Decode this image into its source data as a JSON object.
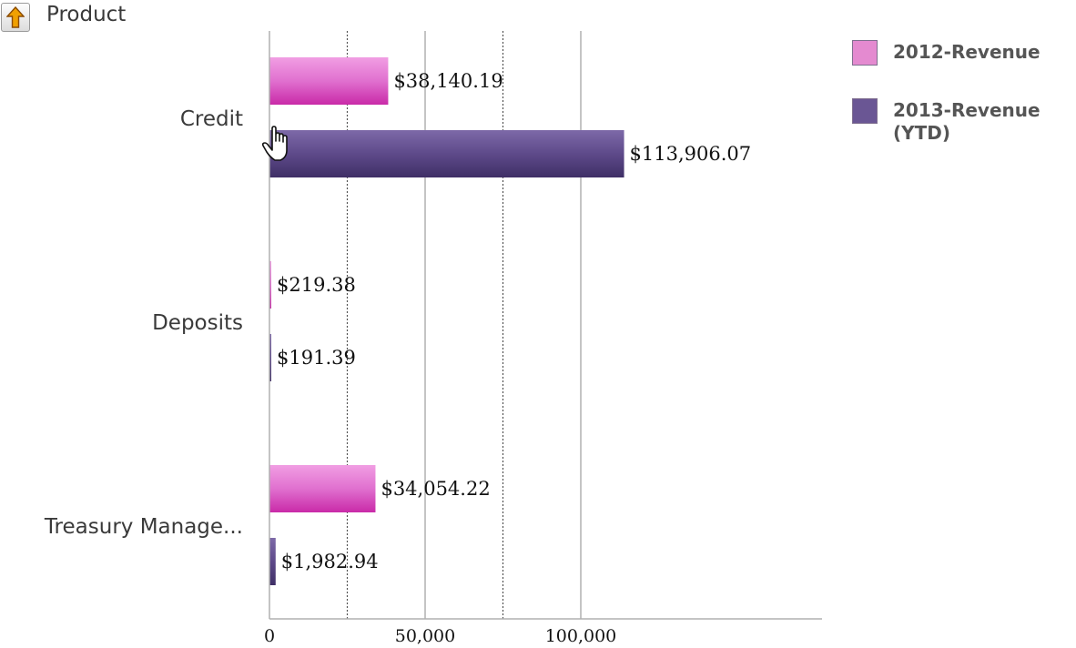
{
  "dimension": {
    "title": "Product",
    "drill_icon": "up-arrow-icon"
  },
  "chart_data": {
    "type": "bar",
    "orientation": "horizontal",
    "categories": [
      "Credit",
      "Deposits",
      "Treasury Manage..."
    ],
    "series": [
      {
        "name": "2012-Revenue",
        "color": "#e48ad0",
        "values": [
          38140.19,
          219.38,
          34054.22
        ],
        "labels": [
          "$38,140.19",
          "$219.38",
          "$34,054.22"
        ]
      },
      {
        "name": "2013-Revenue\n(YTD)",
        "color": "#6a5694",
        "values": [
          113906.07,
          191.39,
          1982.94
        ],
        "labels": [
          "$113,906.07",
          "$191.39",
          "$1,982.94"
        ]
      }
    ],
    "xlim": [
      0,
      180000
    ],
    "ticks": [
      0,
      50000,
      100000
    ],
    "tick_labels": [
      "0",
      "50,000",
      "100,000"
    ],
    "minor_gridlines": [
      25000,
      75000
    ],
    "grid": true,
    "legend_position": "top-right"
  }
}
